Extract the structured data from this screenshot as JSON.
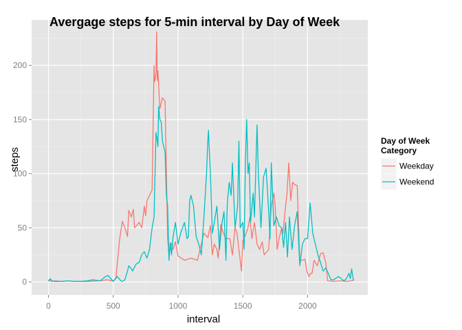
{
  "chart_data": {
    "type": "line",
    "title": "Avergage steps for 5-min interval by Day of Week",
    "xlabel": "interval",
    "ylabel": "steps",
    "xlim": [
      -130,
      2465
    ],
    "ylim": [
      -12,
      242
    ],
    "x_ticks": [
      0,
      500,
      1000,
      1500,
      2000
    ],
    "y_ticks": [
      0,
      50,
      100,
      150,
      200
    ],
    "grid": true,
    "legend": {
      "title_lines": [
        "Day of Week",
        "Category"
      ],
      "position": "right"
    },
    "series": [
      {
        "name": "Weekday",
        "color": "#F8766D",
        "points": [
          [
            0,
            2
          ],
          [
            25,
            0.5
          ],
          [
            50,
            1
          ],
          [
            100,
            0.5
          ],
          [
            150,
            1
          ],
          [
            200,
            0.5
          ],
          [
            300,
            0.5
          ],
          [
            400,
            1
          ],
          [
            450,
            2
          ],
          [
            500,
            1
          ],
          [
            520,
            3
          ],
          [
            550,
            40
          ],
          [
            570,
            56
          ],
          [
            590,
            50
          ],
          [
            610,
            42
          ],
          [
            620,
            66
          ],
          [
            640,
            60
          ],
          [
            655,
            67
          ],
          [
            665,
            50
          ],
          [
            680,
            52
          ],
          [
            700,
            55
          ],
          [
            720,
            50
          ],
          [
            740,
            70
          ],
          [
            750,
            61
          ],
          [
            760,
            75
          ],
          [
            780,
            80
          ],
          [
            800,
            85
          ],
          [
            815,
            200
          ],
          [
            820,
            185
          ],
          [
            830,
            192
          ],
          [
            835,
            231
          ],
          [
            840,
            186
          ],
          [
            845,
            195
          ],
          [
            860,
            160
          ],
          [
            880,
            170
          ],
          [
            900,
            167
          ],
          [
            920,
            40
          ],
          [
            930,
            25
          ],
          [
            945,
            36
          ],
          [
            960,
            30
          ],
          [
            980,
            37
          ],
          [
            1000,
            24
          ],
          [
            1050,
            20
          ],
          [
            1100,
            22
          ],
          [
            1150,
            20
          ],
          [
            1200,
            45
          ],
          [
            1230,
            41
          ],
          [
            1250,
            52
          ],
          [
            1265,
            25
          ],
          [
            1280,
            35
          ],
          [
            1300,
            30
          ],
          [
            1310,
            22
          ],
          [
            1330,
            53
          ],
          [
            1350,
            45
          ],
          [
            1370,
            40
          ],
          [
            1400,
            40
          ],
          [
            1420,
            25
          ],
          [
            1440,
            50
          ],
          [
            1455,
            45
          ],
          [
            1470,
            30
          ],
          [
            1490,
            10
          ],
          [
            1500,
            38
          ],
          [
            1520,
            43
          ],
          [
            1540,
            50
          ],
          [
            1555,
            60
          ],
          [
            1570,
            40
          ],
          [
            1590,
            55
          ],
          [
            1610,
            35
          ],
          [
            1630,
            30
          ],
          [
            1650,
            37
          ],
          [
            1665,
            25
          ],
          [
            1700,
            30
          ],
          [
            1720,
            70
          ],
          [
            1740,
            82
          ],
          [
            1750,
            70
          ],
          [
            1765,
            30
          ],
          [
            1780,
            40
          ],
          [
            1800,
            50
          ],
          [
            1810,
            45
          ],
          [
            1830,
            70
          ],
          [
            1840,
            80
          ],
          [
            1855,
            110
          ],
          [
            1870,
            75
          ],
          [
            1885,
            92
          ],
          [
            1900,
            90
          ],
          [
            1920,
            89
          ],
          [
            1940,
            20
          ],
          [
            1960,
            20
          ],
          [
            1980,
            21
          ],
          [
            1995,
            10
          ],
          [
            2010,
            5
          ],
          [
            2025,
            8
          ],
          [
            2035,
            8
          ],
          [
            2050,
            20
          ],
          [
            2075,
            15
          ],
          [
            2100,
            26
          ],
          [
            2120,
            27
          ],
          [
            2140,
            18
          ],
          [
            2155,
            1
          ],
          [
            2200,
            0.5
          ],
          [
            2250,
            1
          ],
          [
            2300,
            0.5
          ],
          [
            2340,
            1
          ],
          [
            2355,
            2
          ]
        ]
      },
      {
        "name": "Weekend",
        "color": "#00BFC4",
        "points": [
          [
            0,
            0.5
          ],
          [
            15,
            3
          ],
          [
            25,
            1
          ],
          [
            50,
            0.5
          ],
          [
            100,
            0.5
          ],
          [
            150,
            1
          ],
          [
            200,
            0.5
          ],
          [
            250,
            0.5
          ],
          [
            300,
            1
          ],
          [
            340,
            2
          ],
          [
            400,
            1
          ],
          [
            440,
            5
          ],
          [
            460,
            6
          ],
          [
            500,
            0.5
          ],
          [
            530,
            5
          ],
          [
            560,
            1
          ],
          [
            570,
            0.5
          ],
          [
            590,
            2
          ],
          [
            610,
            10
          ],
          [
            620,
            15
          ],
          [
            640,
            12
          ],
          [
            650,
            10
          ],
          [
            660,
            13
          ],
          [
            680,
            17
          ],
          [
            700,
            18
          ],
          [
            720,
            25
          ],
          [
            740,
            28
          ],
          [
            760,
            22
          ],
          [
            780,
            30
          ],
          [
            800,
            50
          ],
          [
            815,
            60
          ],
          [
            830,
            138
          ],
          [
            840,
            130
          ],
          [
            845,
            125
          ],
          [
            850,
            162
          ],
          [
            860,
            150
          ],
          [
            870,
            148
          ],
          [
            880,
            130
          ],
          [
            890,
            125
          ],
          [
            900,
            120
          ],
          [
            910,
            80
          ],
          [
            920,
            70
          ],
          [
            930,
            20
          ],
          [
            940,
            36
          ],
          [
            950,
            25
          ],
          [
            960,
            40
          ],
          [
            980,
            55
          ],
          [
            1000,
            35
          ],
          [
            1020,
            45
          ],
          [
            1050,
            55
          ],
          [
            1070,
            40
          ],
          [
            1080,
            42
          ],
          [
            1090,
            75
          ],
          [
            1100,
            80
          ],
          [
            1120,
            70
          ],
          [
            1140,
            42
          ],
          [
            1160,
            35
          ],
          [
            1180,
            25
          ],
          [
            1200,
            60
          ],
          [
            1210,
            80
          ],
          [
            1220,
            100
          ],
          [
            1230,
            130
          ],
          [
            1235,
            140
          ],
          [
            1250,
            100
          ],
          [
            1265,
            45
          ],
          [
            1280,
            55
          ],
          [
            1300,
            70
          ],
          [
            1320,
            30
          ],
          [
            1340,
            55
          ],
          [
            1355,
            65
          ],
          [
            1370,
            20
          ],
          [
            1380,
            72
          ],
          [
            1395,
            92
          ],
          [
            1410,
            80
          ],
          [
            1420,
            110
          ],
          [
            1430,
            80
          ],
          [
            1440,
            50
          ],
          [
            1460,
            70
          ],
          [
            1470,
            130
          ],
          [
            1480,
            50
          ],
          [
            1500,
            55
          ],
          [
            1510,
            30
          ],
          [
            1520,
            110
          ],
          [
            1530,
            150
          ],
          [
            1540,
            100
          ],
          [
            1550,
            110
          ],
          [
            1560,
            55
          ],
          [
            1580,
            82
          ],
          [
            1590,
            60
          ],
          [
            1610,
            145
          ],
          [
            1620,
            100
          ],
          [
            1640,
            50
          ],
          [
            1660,
            97
          ],
          [
            1680,
            105
          ],
          [
            1700,
            65
          ],
          [
            1710,
            40
          ],
          [
            1720,
            110
          ],
          [
            1740,
            52
          ],
          [
            1760,
            60
          ],
          [
            1780,
            52
          ],
          [
            1800,
            50
          ],
          [
            1815,
            32
          ],
          [
            1830,
            55
          ],
          [
            1845,
            23
          ],
          [
            1860,
            60
          ],
          [
            1880,
            30
          ],
          [
            1900,
            52
          ],
          [
            1920,
            65
          ],
          [
            1940,
            15
          ],
          [
            1960,
            35
          ],
          [
            1980,
            40
          ],
          [
            2000,
            40
          ],
          [
            2020,
            73
          ],
          [
            2040,
            45
          ],
          [
            2060,
            35
          ],
          [
            2080,
            25
          ],
          [
            2100,
            18
          ],
          [
            2120,
            10
          ],
          [
            2140,
            13
          ],
          [
            2160,
            8
          ],
          [
            2180,
            2
          ],
          [
            2200,
            2
          ],
          [
            2240,
            5
          ],
          [
            2260,
            3
          ],
          [
            2280,
            1
          ],
          [
            2300,
            3
          ],
          [
            2320,
            8
          ],
          [
            2330,
            3
          ],
          [
            2340,
            12
          ],
          [
            2355,
            1
          ]
        ]
      }
    ]
  }
}
